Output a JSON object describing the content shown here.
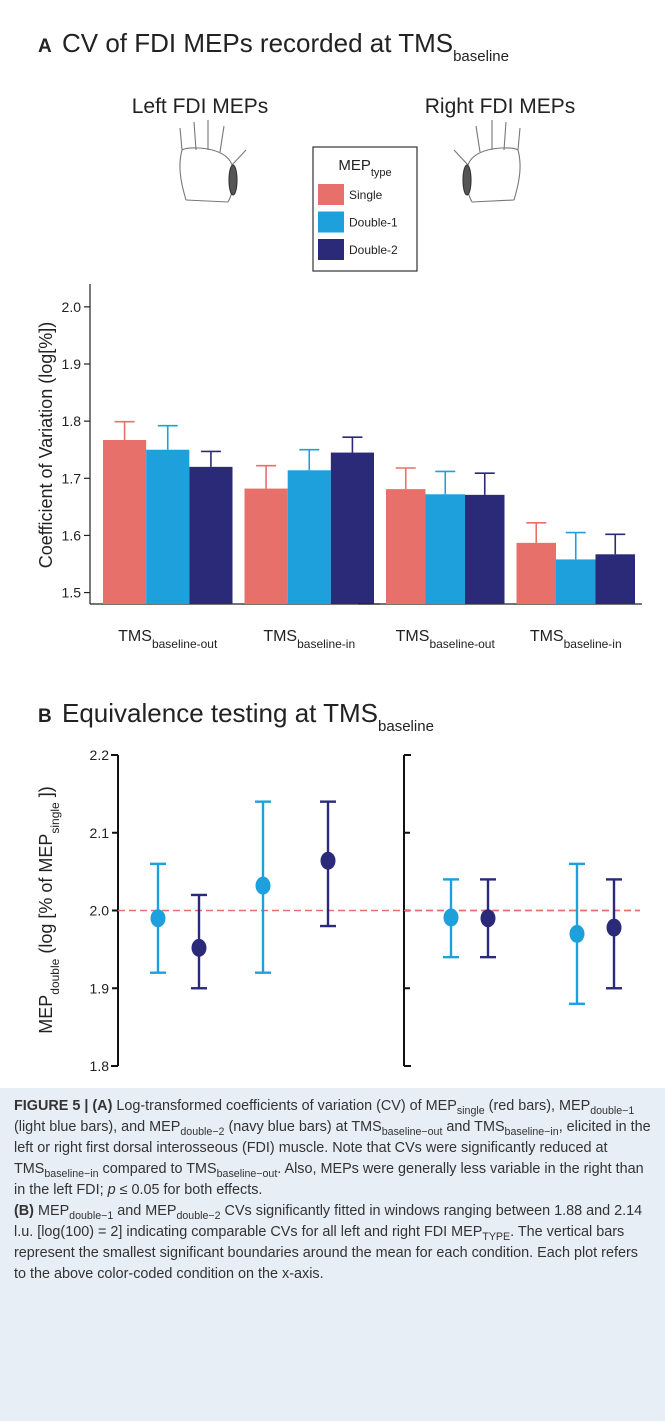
{
  "panels": [
    {
      "letter": "A",
      "title": "CV of FDI MEPs recorded at TMS",
      "title_sub": "baseline"
    },
    {
      "letter": "B",
      "title": "Equivalence testing at TMS",
      "title_sub": "baseline"
    }
  ],
  "chart_data": [
    {
      "type": "bar",
      "title": "Left FDI MEPs",
      "ylabel": "Coefficient of Variation (log[%])",
      "legend_title": "MEP",
      "legend_title_sub": "type",
      "categories": [
        {
          "main": "TMS",
          "sub": "baseline-out"
        },
        {
          "main": "TMS",
          "sub": "baseline-in"
        }
      ],
      "ylim": [
        1.48,
        2.04
      ],
      "yticks": [
        1.5,
        1.6,
        1.7,
        1.8,
        1.9,
        {
          "value": 2,
          "label": "2.0"
        }
      ],
      "series": [
        {
          "name": "Single",
          "color": "#e8706a",
          "values": [
            1.767,
            1.682
          ],
          "errors": [
            0.032,
            0.04
          ]
        },
        {
          "name": "Double-1",
          "color": "#1ea0dc",
          "values": [
            1.75,
            1.714
          ],
          "errors": [
            0.042,
            0.036
          ]
        },
        {
          "name": "Double-2",
          "color": "#2b2a78",
          "values": [
            1.72,
            1.745
          ],
          "errors": [
            0.027,
            0.027
          ]
        }
      ]
    },
    {
      "type": "bar",
      "title": "Right FDI MEPs",
      "categories": [
        {
          "main": "TMS",
          "sub": "baseline-out"
        },
        {
          "main": "TMS",
          "sub": "baseline-in"
        }
      ],
      "ylim": [
        1.48,
        2.04
      ],
      "series": [
        {
          "color": "#e8706a",
          "values": [
            1.681,
            1.587
          ],
          "errors": [
            0.037,
            0.035
          ]
        },
        {
          "color": "#1ea0dc",
          "values": [
            1.672,
            1.558
          ],
          "errors": [
            0.04,
            0.047
          ]
        },
        {
          "color": "#2b2a78",
          "values": [
            1.671,
            1.567
          ],
          "errors": [
            0.038,
            0.035
          ]
        }
      ]
    },
    {
      "type": "errorpoint",
      "ylabel": [
        {
          "text": "MEP"
        },
        {
          "text": "double",
          "style": "sub"
        },
        {
          "text": " (log [% of MEP"
        },
        {
          "text": "single",
          "style": "sub"
        },
        {
          "text": " ])"
        }
      ],
      "ylim": [
        1.8,
        2.2
      ],
      "yticks": [
        1.8,
        1.9,
        {
          "value": 2,
          "label": "2.0"
        },
        2.1,
        2.2
      ],
      "reference": 2,
      "series": [
        {
          "color": "#1ea0dc",
          "values": [
            1.99,
            2.032
          ],
          "lower": [
            1.92,
            1.92
          ],
          "upper": [
            2.06,
            2.14
          ]
        },
        {
          "color": "#2b2a78",
          "values": [
            1.952,
            2.064
          ],
          "lower": [
            1.9,
            1.98
          ],
          "upper": [
            2.02,
            2.14
          ]
        }
      ]
    },
    {
      "type": "errorpoint",
      "ylim": [
        1.8,
        2.2
      ],
      "yticks": [
        1.8,
        1.9,
        2,
        2.1,
        2.2
      ],
      "tick_labels": false,
      "reference": 2,
      "series": [
        {
          "color": "#1ea0dc",
          "values": [
            1.991,
            1.97
          ],
          "lower": [
            1.94,
            1.88
          ],
          "upper": [
            2.04,
            2.06
          ]
        },
        {
          "color": "#2b2a78",
          "values": [
            1.99,
            1.978
          ],
          "lower": [
            1.94,
            1.9
          ],
          "upper": [
            2.04,
            2.04
          ]
        }
      ]
    }
  ],
  "caption": [
    [
      {
        "text": "FIGURE 5 | (A)",
        "style": "bold"
      },
      {
        "text": " Log-transformed coefficients of variation (CV) of MEP"
      },
      {
        "text": "single",
        "style": "sub"
      },
      {
        "text": " (red bars), MEP"
      },
      {
        "text": "double−1",
        "style": "sub"
      },
      {
        "text": " (light blue bars), and MEP"
      },
      {
        "text": "double−2",
        "style": "sub"
      },
      {
        "text": " (navy blue bars) at TMS"
      },
      {
        "text": "baseline−out",
        "style": "sub"
      },
      {
        "text": " and TMS"
      },
      {
        "text": "baseline−in",
        "style": "sub"
      },
      {
        "text": ", elicited in the left or right first dorsal interosseous (FDI) muscle. Note that CVs were significantly reduced at TMS"
      },
      {
        "text": "baseline−in",
        "style": "sub"
      },
      {
        "text": " compared to TMS"
      },
      {
        "text": "baseline−out",
        "style": "sub"
      },
      {
        "text": ". Also, MEPs were generally less variable in the right than in the left FDI; "
      },
      {
        "text": "p",
        "style": "italic"
      },
      {
        "text": " ≤ 0.05 for both effects."
      }
    ],
    [
      {
        "text": "(B)",
        "style": "bold"
      },
      {
        "text": " MEP"
      },
      {
        "text": "double−1",
        "style": "sub"
      },
      {
        "text": " and MEP"
      },
      {
        "text": "double−2",
        "style": "sub"
      },
      {
        "text": " CVs significantly fitted in windows ranging between 1.88 and 2.14 l.u. [log(100) = 2] indicating comparable CVs for all left and right FDI MEP"
      },
      {
        "text": "TYPE",
        "style": "sub"
      },
      {
        "text": ". The vertical bars represent the smallest significant boundaries around the mean for each condition. Each plot refers to the above color-coded condition on the x-axis."
      }
    ]
  ]
}
